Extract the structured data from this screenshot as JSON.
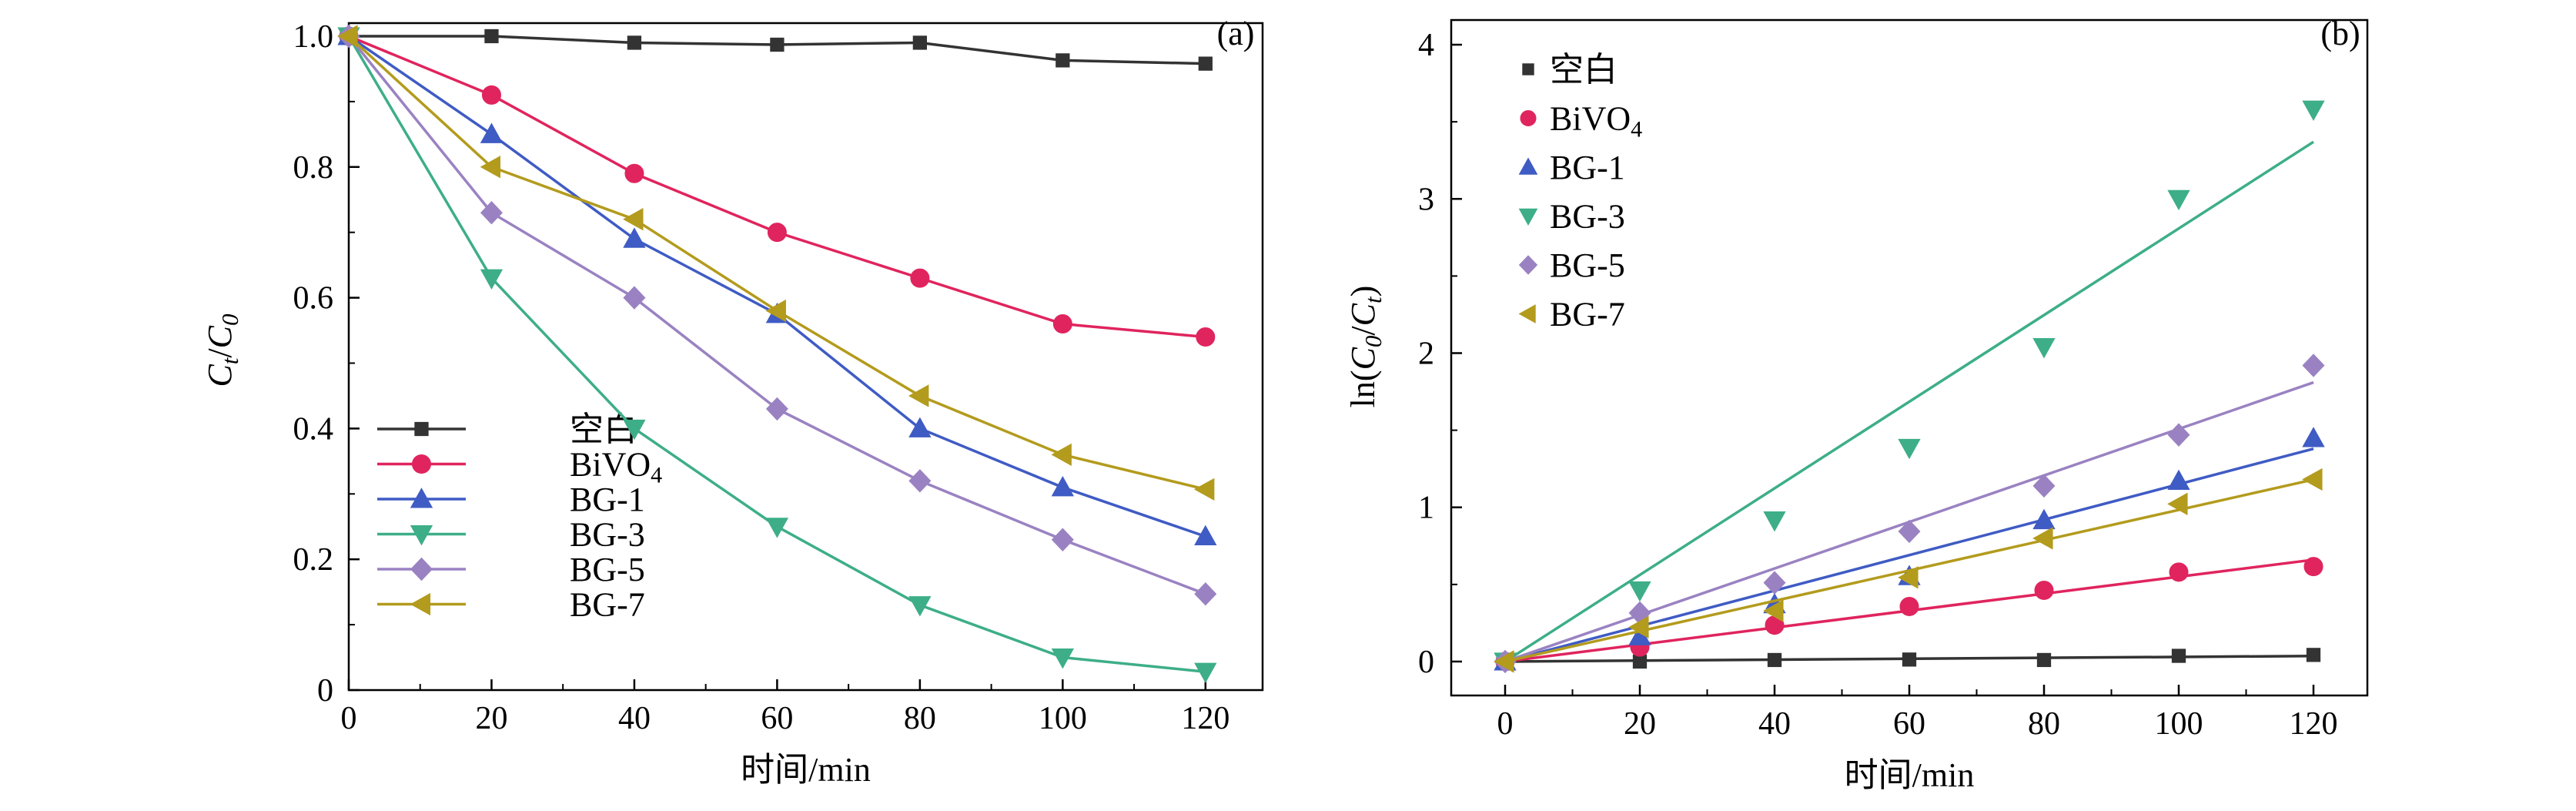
{
  "chart_data": [
    {
      "type": "line",
      "panel_label": "(a)",
      "xlabel": "时间/min",
      "ylabel": {
        "main": "C",
        "sub1": "t",
        "slash": "/",
        "main2": "C",
        "sub2": "0"
      },
      "xlim": [
        0,
        128
      ],
      "ylim": [
        0,
        1.02
      ],
      "xticks": [
        "0",
        "20",
        "40",
        "60",
        "80",
        "100",
        "120"
      ],
      "yticks": [
        "0",
        "0.2",
        "0.4",
        "0.6",
        "0.8",
        "1.0"
      ],
      "legend_position": "bottom-left",
      "x": [
        0,
        20,
        40,
        60,
        80,
        100,
        120
      ],
      "series": [
        {
          "name": "空白",
          "marker": "square",
          "color": "#333333",
          "values": [
            1.0,
            1.0,
            0.99,
            0.987,
            0.99,
            0.963,
            0.958
          ]
        },
        {
          "name": "BiVO",
          "name_sub": "4",
          "marker": "circle",
          "color": "#e0245e",
          "values": [
            1.0,
            0.91,
            0.79,
            0.7,
            0.63,
            0.56,
            0.54
          ]
        },
        {
          "name": "BG-1",
          "marker": "triangle-up",
          "color": "#3f5bc4",
          "values": [
            1.0,
            0.85,
            0.69,
            0.575,
            0.4,
            0.31,
            0.235
          ]
        },
        {
          "name": "BG-3",
          "marker": "triangle-down",
          "color": "#3dae88",
          "values": [
            1.0,
            0.63,
            0.4,
            0.25,
            0.13,
            0.05,
            0.028
          ]
        },
        {
          "name": "BG-5",
          "marker": "diamond",
          "color": "#9a82c2",
          "values": [
            1.0,
            0.73,
            0.6,
            0.43,
            0.32,
            0.23,
            0.147
          ]
        },
        {
          "name": "BG-7",
          "marker": "triangle-left",
          "color": "#b39b1d",
          "values": [
            1.0,
            0.8,
            0.72,
            0.58,
            0.45,
            0.36,
            0.307
          ]
        }
      ]
    },
    {
      "type": "scatter",
      "panel_label": "(b)",
      "xlabel": "时间/min",
      "ylabel": {
        "prefix": "ln(",
        "main": "C",
        "sub1": "0",
        "slash": "/",
        "main2": "C",
        "sub2": "t",
        "suffix": ")"
      },
      "xlim": [
        -8,
        128
      ],
      "ylim": [
        -0.22,
        4.16
      ],
      "xticks": [
        "0",
        "20",
        "40",
        "60",
        "80",
        "100",
        "120"
      ],
      "yticks": [
        "0",
        "1",
        "2",
        "3",
        "4"
      ],
      "legend_position": "top-left",
      "x": [
        0,
        20,
        40,
        60,
        80,
        100,
        120
      ],
      "series": [
        {
          "name": "空白",
          "marker": "square",
          "color": "#333333",
          "values": [
            0,
            0.0,
            0.01,
            0.013,
            0.01,
            0.037,
            0.043
          ],
          "fit_end": 0.036
        },
        {
          "name": "BiVO",
          "name_sub": "4",
          "marker": "circle",
          "color": "#e0245e",
          "values": [
            0,
            0.094,
            0.236,
            0.357,
            0.462,
            0.58,
            0.616
          ],
          "fit_end": 0.66
        },
        {
          "name": "BG-1",
          "marker": "triangle-up",
          "color": "#3f5bc4",
          "values": [
            0,
            0.163,
            0.371,
            0.553,
            0.916,
            1.171,
            1.448
          ],
          "fit_end": 1.38
        },
        {
          "name": "BG-3",
          "marker": "triangle-down",
          "color": "#3dae88",
          "values": [
            0,
            0.462,
            0.916,
            1.386,
            2.04,
            3.0,
            3.58
          ],
          "fit_end": 3.37
        },
        {
          "name": "BG-5",
          "marker": "diamond",
          "color": "#9a82c2",
          "values": [
            0,
            0.315,
            0.511,
            0.844,
            1.139,
            1.47,
            1.92
          ],
          "fit_end": 1.81
        },
        {
          "name": "BG-7",
          "marker": "triangle-left",
          "color": "#b39b1d",
          "values": [
            0,
            0.223,
            0.329,
            0.545,
            0.799,
            1.022,
            1.181
          ],
          "fit_end": 1.18
        }
      ]
    }
  ]
}
